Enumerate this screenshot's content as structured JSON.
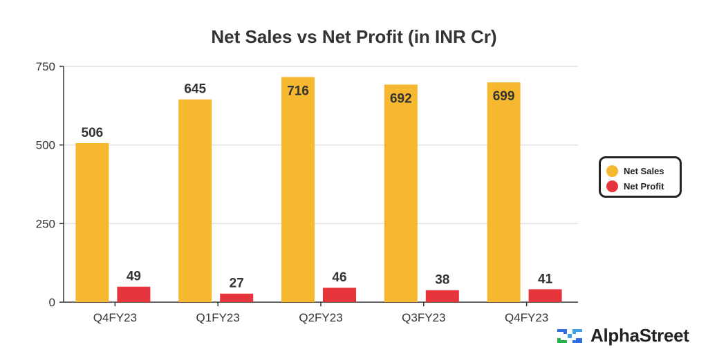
{
  "chart_data": {
    "type": "bar",
    "title": "Net Sales vs Net Profit (in INR Cr)",
    "categories": [
      "Q4FY23",
      "Q1FY23",
      "Q2FY23",
      "Q3FY23",
      "Q4FY23"
    ],
    "series": [
      {
        "name": "Net Sales",
        "color": "#F5B82E",
        "values": [
          506,
          645,
          716,
          692,
          699
        ]
      },
      {
        "name": "Net Profit",
        "color": "#E5343B",
        "values": [
          49,
          27,
          46,
          38,
          41
        ]
      }
    ],
    "ylim": [
      0,
      750
    ],
    "yticks": [
      0,
      250,
      500,
      750
    ],
    "grid": true,
    "legend_position": "right"
  },
  "brand": {
    "name": "AlphaStreet",
    "logo_icon": "alphastreet-logo-icon"
  }
}
